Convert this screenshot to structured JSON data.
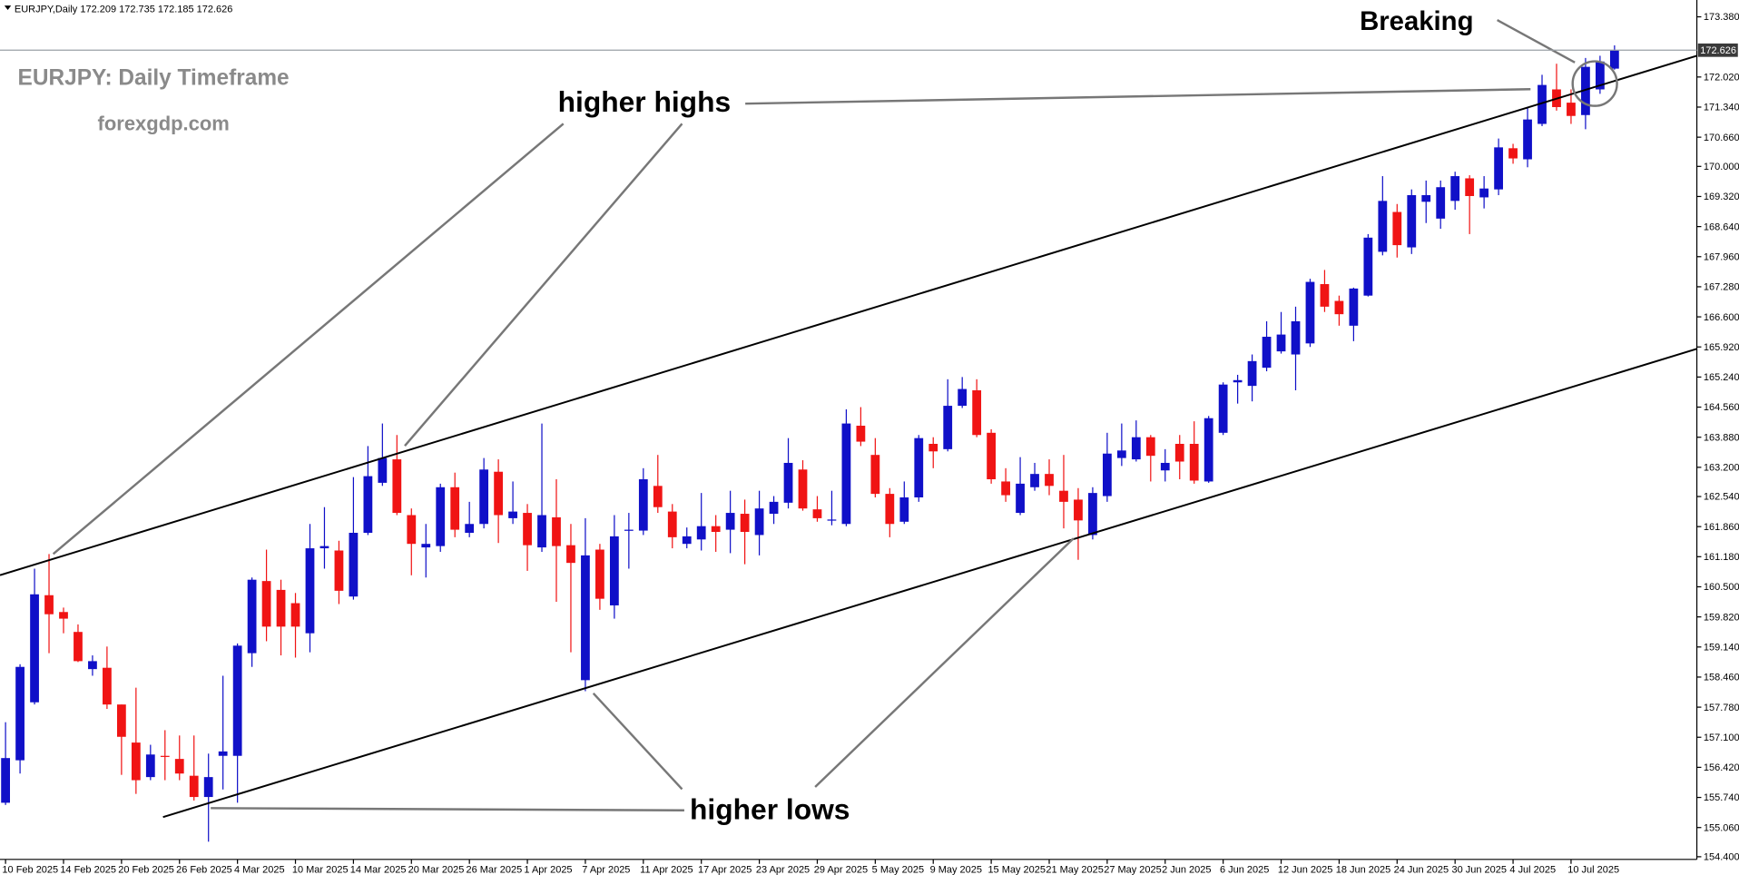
{
  "chart_data": {
    "type": "candlestick",
    "header": "EURJPY,Daily  172.209 172.735 172.185 172.626",
    "annotations": {
      "title": "EURJPY: Daily Timeframe",
      "watermark": "forexgdp.com",
      "higher_highs": "higher highs",
      "higher_lows": "higher lows",
      "breaking": "Breaking"
    },
    "up_color": "#1010c8",
    "down_color": "#f01414",
    "last_price": 172.626,
    "ylim": [
      154.34,
      173.76
    ],
    "yticks": [
      {
        "value": 154.4,
        "label": "154.400"
      },
      {
        "value": 155.06,
        "label": "155.060"
      },
      {
        "value": 155.74,
        "label": "155.740"
      },
      {
        "value": 156.42,
        "label": "156.420"
      },
      {
        "value": 157.1,
        "label": "157.100"
      },
      {
        "value": 157.78,
        "label": "157.780"
      },
      {
        "value": 158.46,
        "label": "158.460"
      },
      {
        "value": 159.14,
        "label": "159.140"
      },
      {
        "value": 159.82,
        "label": "159.820"
      },
      {
        "value": 160.5,
        "label": "160.500"
      },
      {
        "value": 161.18,
        "label": "161.180"
      },
      {
        "value": 161.86,
        "label": "161.860"
      },
      {
        "value": 162.54,
        "label": "162.540"
      },
      {
        "value": 163.2,
        "label": "163.200"
      },
      {
        "value": 163.88,
        "label": "163.880"
      },
      {
        "value": 164.56,
        "label": "164.560"
      },
      {
        "value": 165.24,
        "label": "165.240"
      },
      {
        "value": 165.92,
        "label": "165.920"
      },
      {
        "value": 166.6,
        "label": "166.600"
      },
      {
        "value": 167.28,
        "label": "167.280"
      },
      {
        "value": 167.96,
        "label": "167.960"
      },
      {
        "value": 168.64,
        "label": "168.640"
      },
      {
        "value": 169.32,
        "label": "169.320"
      },
      {
        "value": 170.0,
        "label": "170.000"
      },
      {
        "value": 170.66,
        "label": "170.660"
      },
      {
        "value": 171.34,
        "label": "171.340"
      },
      {
        "value": 172.02,
        "label": "172.020"
      },
      {
        "value": 173.38,
        "label": "173.380"
      }
    ],
    "categories": [
      "10 Feb 2025",
      null,
      null,
      null,
      "14 Feb 2025",
      null,
      null,
      null,
      "20 Feb 2025",
      null,
      null,
      null,
      "26 Feb 2025",
      null,
      null,
      null,
      "4 Mar 2025",
      null,
      null,
      null,
      "10 Mar 2025",
      null,
      null,
      null,
      "14 Mar 2025",
      null,
      null,
      null,
      "20 Mar 2025",
      null,
      null,
      null,
      "26 Mar 2025",
      null,
      null,
      null,
      "1 Apr 2025",
      null,
      null,
      null,
      "7 Apr 2025",
      null,
      null,
      null,
      "11 Apr 2025",
      null,
      null,
      null,
      "17 Apr 2025",
      null,
      null,
      null,
      "23 Apr 2025",
      null,
      null,
      null,
      "29 Apr 2025",
      null,
      null,
      null,
      "5 May 2025",
      null,
      null,
      null,
      "9 May 2025",
      null,
      null,
      null,
      "15 May 2025",
      null,
      null,
      null,
      "21 May 2025",
      null,
      null,
      null,
      "27 May 2025",
      null,
      null,
      null,
      "2 Jun 2025",
      null,
      null,
      null,
      "6 Jun 2025",
      null,
      null,
      null,
      "12 Jun 2025",
      null,
      null,
      null,
      "18 Jun 2025",
      null,
      null,
      null,
      "24 Jun 2025",
      null,
      null,
      null,
      "30 Jun 2025",
      null,
      null,
      null,
      "4 Jul 2025",
      null,
      null,
      null,
      "10 Jul 2025",
      null,
      null,
      null
    ],
    "open": [
      155.62,
      156.58,
      157.89,
      160.31,
      159.93,
      159.48,
      158.64,
      158.67,
      157.84,
      156.98,
      156.2,
      156.68,
      156.61,
      156.23,
      155.75,
      156.68,
      156.68,
      159.0,
      160.63,
      160.43,
      160.13,
      159.45,
      161.37,
      161.32,
      160.28,
      161.72,
      162.85,
      163.38,
      162.12,
      161.39,
      161.42,
      162.75,
      161.72,
      161.92,
      163.1,
      162.05,
      162.17,
      161.39,
      162.07,
      161.44,
      158.39,
      161.34,
      160.08,
      161.77,
      161.77,
      162.78,
      162.2,
      161.47,
      161.57,
      161.87,
      161.79,
      162.15,
      161.67,
      162.15,
      162.4,
      163.15,
      162.25,
      162.0,
      161.92,
      164.14,
      163.48,
      162.6,
      161.97,
      162.52,
      163.73,
      163.61,
      164.59,
      164.94,
      163.98,
      162.88,
      162.17,
      162.75,
      163.05,
      162.67,
      162.47,
      161.67,
      162.55,
      163.41,
      163.38,
      163.88,
      163.13,
      163.73,
      163.73,
      162.88,
      163.98,
      165.12,
      165.04,
      165.45,
      165.82,
      165.75,
      166.0,
      167.34,
      166.96,
      166.4,
      167.08,
      168.07,
      168.97,
      168.17,
      169.2,
      168.82,
      169.22,
      169.73,
      169.3,
      169.48,
      170.41,
      170.16,
      170.96,
      171.74,
      171.44,
      171.16,
      171.74,
      172.209
    ],
    "high": [
      157.44,
      158.75,
      160.91,
      161.24,
      160.03,
      159.65,
      158.95,
      159.15,
      157.84,
      158.22,
      156.93,
      157.26,
      157.14,
      157.14,
      156.73,
      158.49,
      159.22,
      160.71,
      161.34,
      160.66,
      160.36,
      161.92,
      162.3,
      161.54,
      162.98,
      163.68,
      164.19,
      163.93,
      162.27,
      161.92,
      162.83,
      163.08,
      162.42,
      163.41,
      163.38,
      162.88,
      162.37,
      164.19,
      162.93,
      161.92,
      162.05,
      161.47,
      162.12,
      162.17,
      163.18,
      163.48,
      162.37,
      161.84,
      162.62,
      162.12,
      162.67,
      162.47,
      162.67,
      162.55,
      163.86,
      163.36,
      162.55,
      162.67,
      164.51,
      164.56,
      163.86,
      162.73,
      162.88,
      163.93,
      163.88,
      165.19,
      165.24,
      165.19,
      164.06,
      163.18,
      163.43,
      163.3,
      163.38,
      163.48,
      162.73,
      162.75,
      163.98,
      164.19,
      164.26,
      163.93,
      163.61,
      163.93,
      164.24,
      164.36,
      165.12,
      165.29,
      165.75,
      166.5,
      166.71,
      166.83,
      167.46,
      167.66,
      167.08,
      167.26,
      168.47,
      169.78,
      169.15,
      169.48,
      169.68,
      169.68,
      169.88,
      169.8,
      169.78,
      170.63,
      170.51,
      171.32,
      172.07,
      172.32,
      171.74,
      172.45,
      172.5,
      172.735
    ],
    "low": [
      155.57,
      156.28,
      157.84,
      159.0,
      159.45,
      158.8,
      158.49,
      157.74,
      156.25,
      155.82,
      156.13,
      156.13,
      156.13,
      155.67,
      154.74,
      155.92,
      155.62,
      158.69,
      159.27,
      158.95,
      158.9,
      159.02,
      160.91,
      160.11,
      160.21,
      161.67,
      162.78,
      162.12,
      160.76,
      160.71,
      161.29,
      161.62,
      161.62,
      161.82,
      161.49,
      161.92,
      160.86,
      161.29,
      160.16,
      159.02,
      158.14,
      159.98,
      159.78,
      160.91,
      161.67,
      162.17,
      161.37,
      161.37,
      161.32,
      161.29,
      161.26,
      161.01,
      161.21,
      161.92,
      162.27,
      162.22,
      161.97,
      161.89,
      161.87,
      163.68,
      162.52,
      161.62,
      161.92,
      162.42,
      163.18,
      163.56,
      164.54,
      163.88,
      162.83,
      162.42,
      162.12,
      162.67,
      162.57,
      161.82,
      161.11,
      161.57,
      162.42,
      163.23,
      163.33,
      162.88,
      162.88,
      162.93,
      162.83,
      162.85,
      163.93,
      164.64,
      164.69,
      165.37,
      165.77,
      164.94,
      165.92,
      166.71,
      166.4,
      166.05,
      167.06,
      167.99,
      167.94,
      168.02,
      168.72,
      168.59,
      169.02,
      168.47,
      169.05,
      169.35,
      170.06,
      169.98,
      170.91,
      171.26,
      170.96,
      170.84,
      171.64,
      172.185
    ],
    "close": [
      156.63,
      158.69,
      160.33,
      159.88,
      159.78,
      158.82,
      158.82,
      157.84,
      157.11,
      156.13,
      156.71,
      156.66,
      156.28,
      155.75,
      156.2,
      156.78,
      159.17,
      160.66,
      159.6,
      159.6,
      159.6,
      161.37,
      161.42,
      160.41,
      161.72,
      163.0,
      163.41,
      162.17,
      161.47,
      161.47,
      162.75,
      161.79,
      161.92,
      163.15,
      162.12,
      162.2,
      161.44,
      162.12,
      161.42,
      161.04,
      161.21,
      160.23,
      161.64,
      161.79,
      162.93,
      162.3,
      161.62,
      161.64,
      161.87,
      161.74,
      162.17,
      161.74,
      162.27,
      162.42,
      163.3,
      162.27,
      162.05,
      162.02,
      164.19,
      163.78,
      162.6,
      161.92,
      162.52,
      163.86,
      163.56,
      164.59,
      164.97,
      163.93,
      162.93,
      162.57,
      162.83,
      163.05,
      162.78,
      162.42,
      162.0,
      162.62,
      163.51,
      163.58,
      163.88,
      163.46,
      163.3,
      163.33,
      162.9,
      164.31,
      165.07,
      165.17,
      165.6,
      166.15,
      166.2,
      166.5,
      167.39,
      166.83,
      166.66,
      167.24,
      168.39,
      169.22,
      168.22,
      169.35,
      169.35,
      169.53,
      169.78,
      169.33,
      169.5,
      170.43,
      170.18,
      171.06,
      171.84,
      171.34,
      171.14,
      172.25,
      172.37,
      172.626
    ]
  }
}
